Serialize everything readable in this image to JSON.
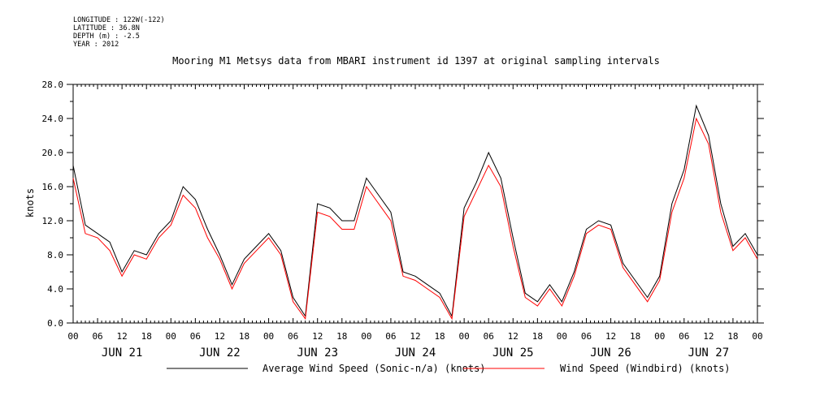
{
  "meta": {
    "longitude": "LONGITUDE : 122W(-122)",
    "latitude": "LATITUDE : 36.8N",
    "depth": "DEPTH (m) : -2.5",
    "year": "YEAR : 2012"
  },
  "chart_data": {
    "type": "line",
    "title": "Mooring M1 Metsys data from MBARI instrument id 1397 at original sampling intervals",
    "xlabel": "",
    "ylabel": "knots",
    "ylim": [
      0,
      28
    ],
    "xlim_hours": [
      0,
      168
    ],
    "y_ticks": [
      "0.0",
      "4.0",
      "8.0",
      "12.0",
      "16.0",
      "20.0",
      "24.0",
      "28.0"
    ],
    "x_hour_ticks": [
      "00",
      "06",
      "12",
      "18",
      "00",
      "06",
      "12",
      "18",
      "00",
      "06",
      "12",
      "18",
      "00",
      "06",
      "12",
      "18",
      "00",
      "06",
      "12",
      "18",
      "00",
      "06",
      "12",
      "18",
      "00",
      "06",
      "12",
      "18",
      "00"
    ],
    "day_labels": [
      "JUN 21",
      "JUN 22",
      "JUN 23",
      "JUN 24",
      "JUN 25",
      "JUN 26",
      "JUN 27"
    ],
    "grid": false,
    "legend_position": "bottom",
    "x_hours": [
      0,
      3,
      6,
      9,
      12,
      15,
      18,
      21,
      24,
      27,
      30,
      33,
      36,
      39,
      42,
      45,
      48,
      51,
      54,
      57,
      60,
      63,
      66,
      69,
      72,
      75,
      78,
      81,
      84,
      87,
      90,
      93,
      96,
      99,
      102,
      105,
      108,
      111,
      114,
      117,
      120,
      123,
      126,
      129,
      132,
      135,
      138,
      141,
      144,
      147,
      150,
      153,
      156,
      159,
      162,
      165,
      168
    ],
    "series": [
      {
        "name": "Average Wind Speed (Sonic-n/a) (knots)",
        "color": "#000000",
        "values": [
          18.5,
          11.5,
          10.5,
          9.5,
          6.0,
          8.5,
          8.0,
          10.5,
          12.0,
          16.0,
          14.5,
          11.0,
          8.0,
          4.5,
          7.5,
          9.0,
          10.5,
          8.5,
          3.0,
          0.8,
          14.0,
          13.5,
          12.0,
          12.0,
          17.0,
          15.0,
          13.0,
          6.0,
          5.5,
          4.5,
          3.5,
          0.8,
          13.5,
          16.5,
          20.0,
          17.0,
          10.0,
          3.5,
          2.5,
          4.5,
          2.5,
          6.0,
          11.0,
          12.0,
          11.5,
          7.0,
          5.0,
          3.0,
          5.5,
          14.0,
          18.0,
          25.5,
          22.0,
          14.0,
          9.0,
          10.5,
          8.0
        ]
      },
      {
        "name": "Wind Speed (Windbird) (knots)",
        "color": "#ff0000",
        "values": [
          17.0,
          10.5,
          10.0,
          8.5,
          5.5,
          8.0,
          7.5,
          10.0,
          11.5,
          15.0,
          13.5,
          10.0,
          7.5,
          4.0,
          7.0,
          8.5,
          10.0,
          8.0,
          2.5,
          0.5,
          13.0,
          12.5,
          11.0,
          11.0,
          16.0,
          14.0,
          12.0,
          5.5,
          5.0,
          4.0,
          3.0,
          0.5,
          12.5,
          15.5,
          18.5,
          16.0,
          9.0,
          3.0,
          2.0,
          4.0,
          2.0,
          5.5,
          10.5,
          11.5,
          11.0,
          6.5,
          4.5,
          2.5,
          5.0,
          13.0,
          17.0,
          24.0,
          21.0,
          13.0,
          8.5,
          10.0,
          7.5
        ]
      }
    ],
    "legend": [
      {
        "label": "Average Wind Speed (Sonic-n/a) (knots)",
        "color": "#000000"
      },
      {
        "label": "Wind Speed (Windbird) (knots)",
        "color": "#ff0000"
      }
    ]
  }
}
